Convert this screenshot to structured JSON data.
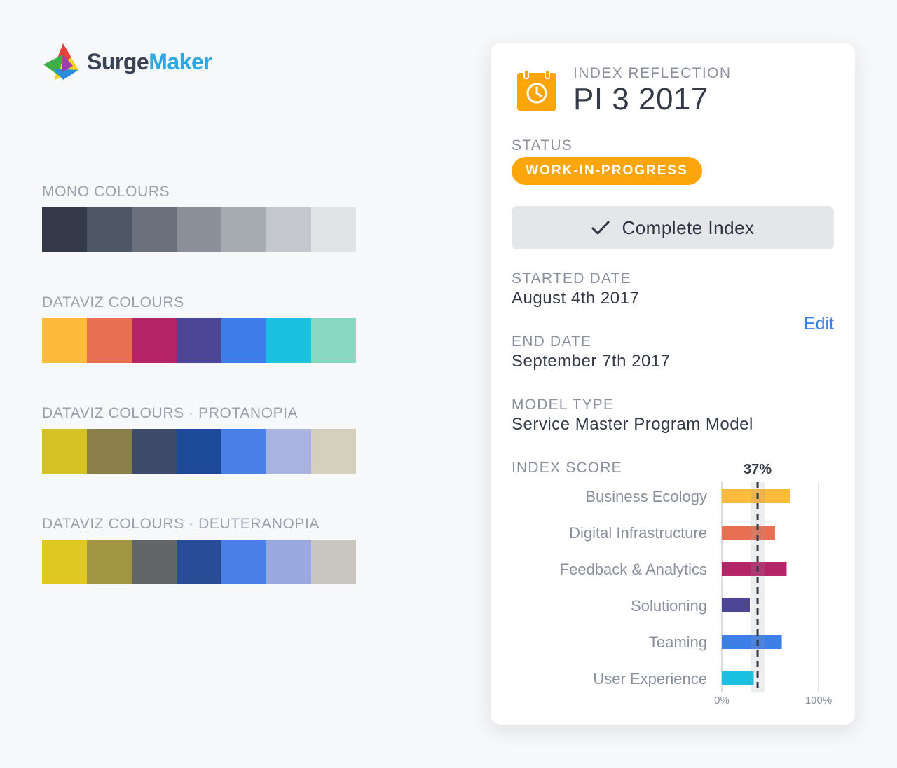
{
  "brand": {
    "name_part1": "Surge",
    "name_part2": "Maker",
    "icon": "surgemaker-triangle-logo",
    "colors": {
      "text_dark": "#3a4256",
      "text_blue": "#2da8e0"
    }
  },
  "palettes": [
    {
      "title": "MONO COLOURS",
      "colors": [
        "#343a47",
        "#4e5563",
        "#6b717c",
        "#8a8f98",
        "#a7abb2",
        "#c4c7cd",
        "#e2e3e5"
      ]
    },
    {
      "title": "DATAVIZ COLOURS",
      "colors": [
        "#fdbb3c",
        "#e86f51",
        "#b52467",
        "#4d4596",
        "#3d7ee8",
        "#1bbfe0",
        "#88d8c0"
      ]
    },
    {
      "title": "DATAVIZ COLOURS · PROTANOPIA",
      "colors": [
        "#d5c326",
        "#8a7f4a",
        "#404a6b",
        "#1c4998",
        "#4a7fe8",
        "#a8b3e0",
        "#d5d0be"
      ]
    },
    {
      "title": "DATAVIZ COLOURS · DEUTERANOPIA",
      "colors": [
        "#dec821",
        "#a09644",
        "#636567",
        "#284d96",
        "#4a7fe8",
        "#9aa9e0",
        "#c8c6bf"
      ]
    }
  ],
  "card": {
    "icon": "calendar-clock-icon",
    "kicker": "INDEX REFLECTION",
    "title": "PI 3 2017",
    "status_label": "STATUS",
    "status_badge": "WORK-IN-PROGRESS",
    "status_color": "#fda60c",
    "complete_button": "Complete Index",
    "complete_icon": "checkmark-icon",
    "started_label": "STARTED DATE",
    "started_value": "August 4th 2017",
    "end_label": "END DATE",
    "end_value": "September 7th 2017",
    "edit_link": "Edit",
    "model_label": "MODEL TYPE",
    "model_value": "Service Master Program Model",
    "score_label": "INDEX SCORE"
  },
  "chart_data": {
    "type": "bar",
    "orientation": "horizontal",
    "categories": [
      "Business Ecology",
      "Digital Infrastructure",
      "Feedback & Analytics",
      "Solutioning",
      "Teaming",
      "User Experience"
    ],
    "values": [
      71,
      55,
      67,
      29,
      62,
      33
    ],
    "colors": [
      "#fdbb3c",
      "#e86f51",
      "#b52467",
      "#4d4596",
      "#3d7ee8",
      "#1bbfe0"
    ],
    "xlim": [
      0,
      100
    ],
    "xtick_labels": [
      "0%",
      "100%"
    ],
    "reference_line": {
      "value": 37,
      "label": "37%",
      "style": "dashed"
    }
  }
}
